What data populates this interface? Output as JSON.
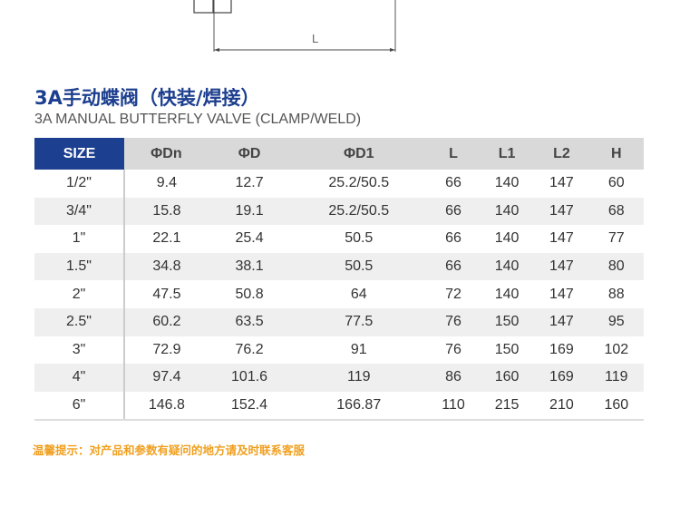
{
  "drawing": {
    "dimension_label": "L"
  },
  "title_cn": "3A手动蝶阀（快装/焊接）",
  "title_en": "3A MANUAL BUTTERFLY VALVE (CLAMP/WELD)",
  "table": {
    "headers": [
      "SIZE",
      "ΦDn",
      "ΦD",
      "ΦD1",
      "L",
      "L1",
      "L2",
      "H"
    ],
    "rows": [
      [
        "1/2\"",
        "9.4",
        "12.7",
        "25.2/50.5",
        "66",
        "140",
        "147",
        "60"
      ],
      [
        "3/4\"",
        "15.8",
        "19.1",
        "25.2/50.5",
        "66",
        "140",
        "147",
        "68"
      ],
      [
        "1\"",
        "22.1",
        "25.4",
        "50.5",
        "66",
        "140",
        "147",
        "77"
      ],
      [
        "1.5\"",
        "34.8",
        "38.1",
        "50.5",
        "66",
        "140",
        "147",
        "80"
      ],
      [
        "2\"",
        "47.5",
        "50.8",
        "64",
        "72",
        "140",
        "147",
        "88"
      ],
      [
        "2.5\"",
        "60.2",
        "63.5",
        "77.5",
        "76",
        "150",
        "147",
        "95"
      ],
      [
        "3\"",
        "72.9",
        "76.2",
        "91",
        "76",
        "150",
        "169",
        "102"
      ],
      [
        "4\"",
        "97.4",
        "101.6",
        "119",
        "86",
        "160",
        "169",
        "119"
      ],
      [
        "6\"",
        "146.8",
        "152.4",
        "166.87",
        "110",
        "215",
        "210",
        "160"
      ]
    ]
  },
  "tip": "温馨提示：对产品和参数有疑问的地方请及时联系客服",
  "colors": {
    "header_accent": "#1d3f8f",
    "tip": "#f0a020"
  }
}
